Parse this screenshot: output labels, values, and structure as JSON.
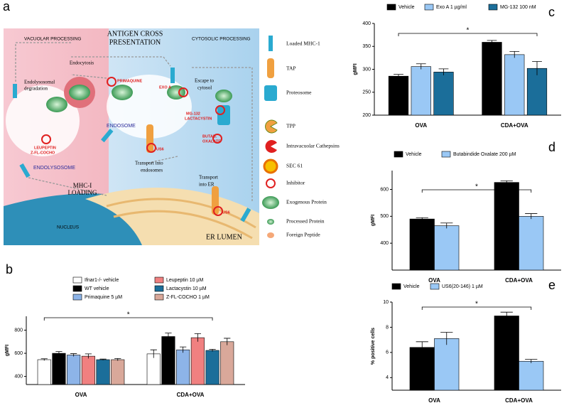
{
  "diagram": {
    "panel": "a",
    "labels": [
      "VACUOLAR PROCESSING",
      "ANTIGEN CROSS",
      "PRESENTATION",
      "CYTOSOLIC PROCESSING",
      "Endocytosis",
      "Endolysosomal",
      "degradation",
      "LEUPEPTIN",
      "Z-FL-COCHO",
      "ENDOLYSOSOME",
      "PRIMAQUINE",
      "EXO A",
      "Escape to",
      "cytosol",
      "MG-132",
      "LACTACYSTIN",
      "ENDOSOME",
      "US6",
      "BUTAB.",
      "OXALATE",
      "Transport into",
      "endosomes",
      "MHC-I",
      "LOADING",
      "Transport",
      "into ER",
      "US6",
      "NUCLEUS",
      "ER LUMEN"
    ],
    "legend": [
      "Loaded MHC-1",
      "TAP",
      "Proteosome",
      "TPP",
      "Intravacuolar Cathepsins",
      "SEC 61",
      "Inhibitor",
      "Exogenous Protein",
      "Processed Protein",
      "Foreign Peptide"
    ]
  },
  "chart_data": [
    {
      "type": "bar",
      "panel": "b",
      "y_label": "gMFI",
      "annotation": "*",
      "categories": [
        "OVA",
        "CDA+OVA"
      ],
      "series": [
        {
          "name": "Ifnar1-/- vehicle",
          "color": "#ffffff",
          "values": [
            545,
            595
          ],
          "errors": [
            8,
            35
          ]
        },
        {
          "name": "WT vehicle",
          "color": "#000000",
          "values": [
            600,
            745
          ],
          "errors": [
            15,
            30
          ]
        },
        {
          "name": "Primaquine 5 µM",
          "color": "#8db4e8",
          "values": [
            585,
            630
          ],
          "errors": [
            12,
            25
          ]
        },
        {
          "name": "Leupeptin 10 µM",
          "color": "#f08080",
          "values": [
            575,
            735
          ],
          "errors": [
            20,
            35
          ]
        },
        {
          "name": "Lactacystin 10 µM",
          "color": "#1b6e9a",
          "values": [
            545,
            625
          ],
          "errors": [
            5,
            10
          ]
        },
        {
          "name": "Z-FL-COCHO 1 µM",
          "color": "#d9a89a",
          "values": [
            545,
            700
          ],
          "errors": [
            10,
            30
          ]
        }
      ],
      "ylim": [
        330,
        920
      ],
      "yticks": [
        400,
        600,
        800
      ]
    },
    {
      "type": "bar",
      "panel": "c",
      "y_label": "gMFI",
      "annotation": "*",
      "categories": [
        "OVA",
        "CDA+OVA"
      ],
      "series": [
        {
          "name": "Vehicle",
          "color": "#000000",
          "values": [
            285,
            359
          ],
          "errors": [
            4,
            4
          ]
        },
        {
          "name": "Exo A 1 µg/ml",
          "color": "#9ac8f5",
          "values": [
            306,
            332
          ],
          "errors": [
            6,
            7
          ]
        },
        {
          "name": "MG-132 100 nM",
          "color": "#1b6e9a",
          "values": [
            294,
            302
          ],
          "errors": [
            7,
            15
          ]
        }
      ],
      "ylim": [
        200,
        400
      ],
      "yticks": [
        200,
        250,
        300,
        350,
        400
      ]
    },
    {
      "type": "bar",
      "panel": "d",
      "y_label": "gMFI",
      "annotation": "*",
      "categories": [
        "OVA",
        "CDA+OVA"
      ],
      "series": [
        {
          "name": "Vehicle",
          "color": "#000000",
          "values": [
            490,
            626
          ],
          "errors": [
            5,
            6
          ]
        },
        {
          "name": "Butabindide Oxalate 200 µM",
          "color": "#9ac8f5",
          "values": [
            465,
            500
          ],
          "errors": [
            10,
            10
          ]
        }
      ],
      "ylim": [
        300,
        670
      ],
      "yticks": [
        400,
        500,
        600
      ]
    },
    {
      "type": "bar",
      "panel": "e",
      "y_label": "% positive cells",
      "annotation": "*",
      "categories": [
        "OVA",
        "CDA+OVA"
      ],
      "series": [
        {
          "name": "Vehicle",
          "color": "#000000",
          "values": [
            6.4,
            8.9
          ],
          "errors": [
            0.45,
            0.3
          ]
        },
        {
          "name": "US6(20-146) 1 µM",
          "color": "#9ac8f5",
          "values": [
            7.1,
            5.3
          ],
          "errors": [
            0.5,
            0.15
          ]
        }
      ],
      "ylim": [
        3,
        10
      ],
      "yticks": [
        4,
        6,
        8,
        10
      ]
    }
  ]
}
